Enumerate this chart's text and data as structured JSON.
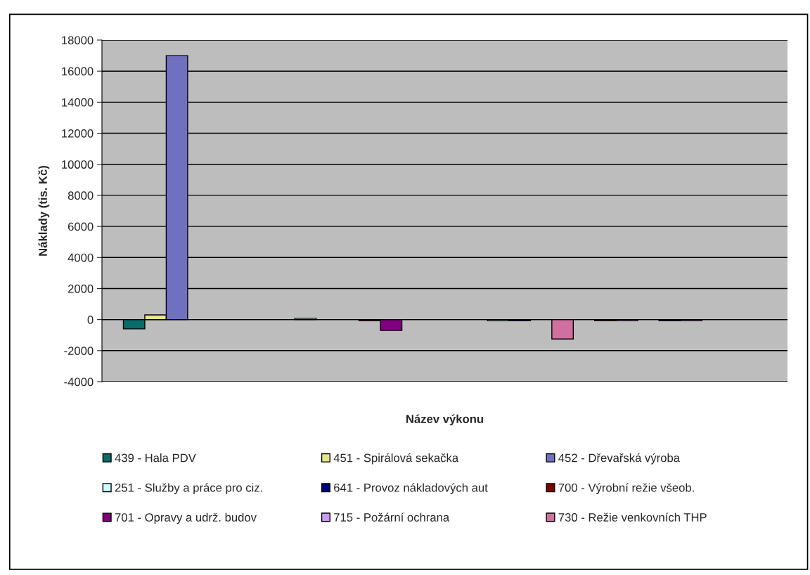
{
  "chart_data": {
    "type": "bar",
    "xlabel": "Název výkonu",
    "ylabel": "Náklady (tis. Kč)",
    "categories": [
      null,
      null,
      null,
      null,
      null,
      null,
      null,
      null,
      null,
      null,
      null,
      null,
      null,
      null,
      null,
      null,
      null,
      null,
      null,
      null,
      null,
      null,
      null,
      null,
      null,
      null,
      null,
      null,
      null,
      null,
      null,
      null
    ],
    "series": [
      {
        "name": "439 - Hala PDV",
        "color": "#0a6b6b",
        "values": [
          null,
          -600,
          null,
          null,
          null,
          null,
          null,
          null,
          null,
          null,
          null,
          null,
          null,
          null,
          null,
          null,
          null,
          null,
          null,
          null,
          null,
          null,
          null,
          null,
          null,
          null,
          null,
          null,
          null,
          null,
          null,
          null
        ]
      },
      {
        "name": "451 - Spirálová sekačka",
        "color": "#e6e68a",
        "values": [
          null,
          null,
          300,
          null,
          null,
          null,
          null,
          null,
          null,
          null,
          null,
          null,
          null,
          null,
          null,
          null,
          null,
          null,
          null,
          null,
          null,
          null,
          null,
          null,
          null,
          null,
          null,
          null,
          null,
          null,
          null,
          null
        ]
      },
      {
        "name": "452 - Dřevařská výroba",
        "color": "#7070c0",
        "values": [
          null,
          null,
          null,
          17000,
          null,
          null,
          null,
          null,
          null,
          null,
          null,
          null,
          null,
          null,
          null,
          null,
          null,
          null,
          null,
          null,
          null,
          null,
          null,
          null,
          null,
          null,
          null,
          null,
          null,
          null,
          null,
          null
        ]
      },
      {
        "name": "251 - Služby a práce pro ciz.",
        "color": "#ccffff",
        "values": [
          null,
          null,
          null,
          null,
          null,
          null,
          null,
          null,
          null,
          80,
          null,
          null,
          null,
          null,
          null,
          null,
          null,
          null,
          -80,
          null,
          null,
          null,
          null,
          null,
          null,
          null,
          null,
          null,
          null,
          null,
          null,
          null
        ]
      },
      {
        "name": "641 - Provoz nákladových aut",
        "color": "#000080",
        "values": [
          null,
          null,
          null,
          null,
          null,
          null,
          null,
          null,
          null,
          null,
          null,
          null,
          null,
          null,
          null,
          null,
          null,
          null,
          null,
          -80,
          null,
          null,
          null,
          null,
          null,
          null,
          -80,
          null,
          null,
          null,
          null,
          null
        ]
      },
      {
        "name": "700 - Výrobní režie všeob.",
        "color": "#800000",
        "values": [
          null,
          null,
          null,
          null,
          null,
          null,
          null,
          null,
          null,
          null,
          null,
          null,
          -80,
          null,
          null,
          null,
          null,
          null,
          null,
          null,
          null,
          null,
          null,
          -80,
          null,
          null,
          null,
          null,
          null,
          null,
          null,
          null
        ]
      },
      {
        "name": "701 - Opravy a udrž. budov",
        "color": "#800080",
        "values": [
          null,
          null,
          null,
          null,
          null,
          null,
          null,
          null,
          null,
          null,
          null,
          null,
          null,
          -700,
          null,
          null,
          null,
          null,
          null,
          null,
          null,
          null,
          null,
          null,
          null,
          null,
          null,
          null,
          null,
          null,
          null,
          null
        ]
      },
      {
        "name": "715 - Požární ochrana",
        "color": "#cc99ff",
        "values": [
          null,
          null,
          null,
          null,
          null,
          null,
          null,
          null,
          null,
          null,
          null,
          null,
          null,
          null,
          null,
          null,
          null,
          null,
          null,
          null,
          null,
          null,
          null,
          null,
          -80,
          null,
          null,
          -80,
          null,
          null,
          null,
          null
        ]
      },
      {
        "name": "730 - Režie venkovních THP",
        "color": "#d070a0",
        "values": [
          null,
          null,
          null,
          null,
          null,
          null,
          null,
          null,
          null,
          null,
          null,
          null,
          null,
          null,
          null,
          null,
          null,
          null,
          null,
          null,
          null,
          -1250,
          null,
          null,
          null,
          null,
          null,
          null,
          null,
          null,
          null,
          null
        ]
      }
    ],
    "ylim": [
      -4000,
      18000
    ],
    "yticks": [
      -4000,
      -2000,
      0,
      2000,
      4000,
      6000,
      8000,
      10000,
      12000,
      14000,
      16000,
      18000
    ],
    "grid": "y",
    "legend": "bottom"
  }
}
